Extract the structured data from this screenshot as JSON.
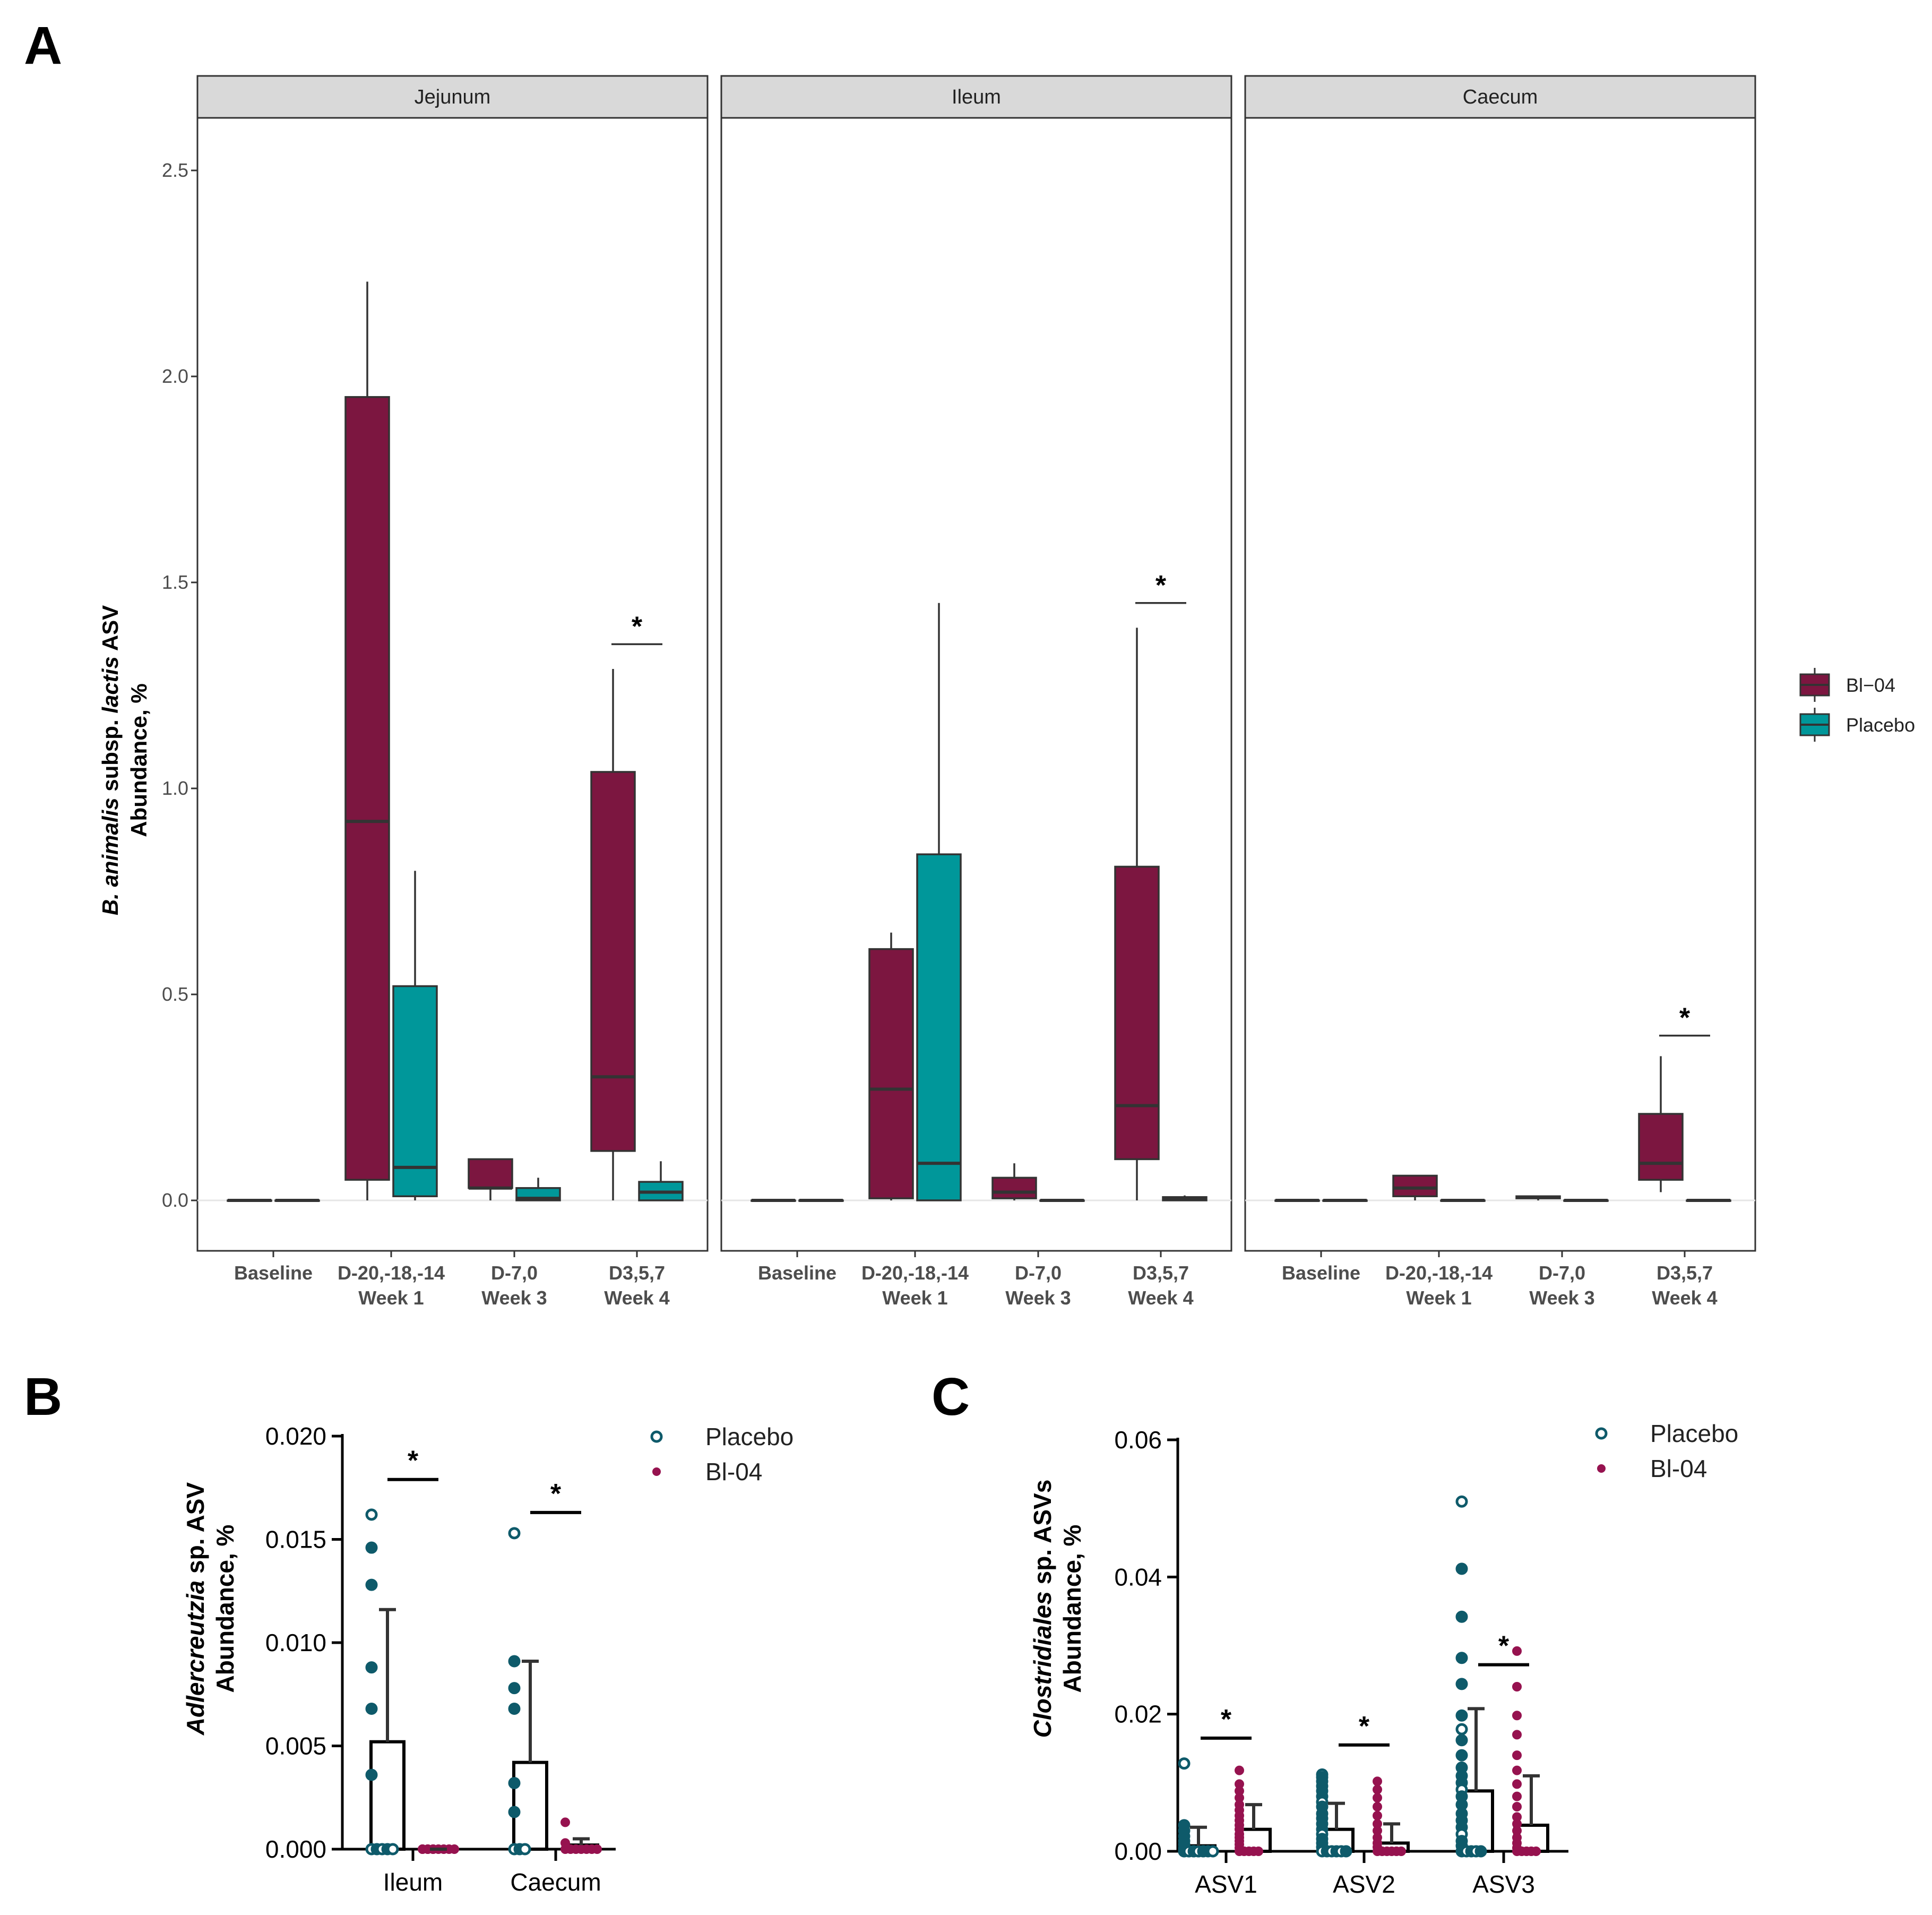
{
  "panel_letters": [
    "A",
    "B",
    "C"
  ],
  "colors": {
    "bl04": "#7c1640",
    "placebo": "#00979a",
    "placebo_dot": "#0e5a6a",
    "bl04_dot": "#96124f",
    "strip_bg": "#d9d9d9"
  },
  "chart_data": [
    {
      "id": "A",
      "type": "box",
      "ylabel_italic": "B. animalis",
      "ylabel_mid": " subsp. ",
      "ylabel_italic2": "lactis",
      "ylabel_tail": " ASV",
      "ylabel_line2": "Abundance, %",
      "ylim": [
        -0.12,
        2.6
      ],
      "yticks": [
        "0.0",
        "0.5",
        "1.0",
        "1.5",
        "2.0",
        "2.5"
      ],
      "categories": [
        "Baseline",
        "D-20,-18,-14|Week 1",
        "D-7,0|Week 3",
        "D3,5,7|Week 4"
      ],
      "legend": [
        "Bl−04",
        "Placebo"
      ],
      "facets": [
        {
          "name": "Jejunum",
          "boxes": [
            {
              "cat": 0,
              "group": "bl04",
              "wlo": 0,
              "q1": 0,
              "med": 0,
              "q3": 0,
              "whi": 0
            },
            {
              "cat": 0,
              "group": "placebo",
              "wlo": 0,
              "q1": 0,
              "med": 0,
              "q3": 0,
              "whi": 0
            },
            {
              "cat": 1,
              "group": "bl04",
              "wlo": 0,
              "q1": 0.05,
              "med": 0.92,
              "q3": 1.95,
              "whi": 2.23
            },
            {
              "cat": 1,
              "group": "placebo",
              "wlo": 0,
              "q1": 0.01,
              "med": 0.08,
              "q3": 0.52,
              "whi": 0.8
            },
            {
              "cat": 2,
              "group": "bl04",
              "wlo": 0,
              "q1": 0.03,
              "med": 0.03,
              "q3": 0.1,
              "whi": 0.1
            },
            {
              "cat": 2,
              "group": "placebo",
              "wlo": 0,
              "q1": 0,
              "med": 0.005,
              "q3": 0.03,
              "whi": 0.055
            },
            {
              "cat": 3,
              "group": "bl04",
              "wlo": 0,
              "q1": 0.12,
              "med": 0.3,
              "q3": 1.04,
              "whi": 1.29
            },
            {
              "cat": 3,
              "group": "placebo",
              "wlo": 0,
              "q1": 0,
              "med": 0.02,
              "q3": 0.045,
              "whi": 0.095
            }
          ],
          "sig": [
            {
              "cat": 3,
              "y": 1.35,
              "label": "*"
            }
          ]
        },
        {
          "name": "Ileum",
          "boxes": [
            {
              "cat": 0,
              "group": "bl04",
              "wlo": 0,
              "q1": 0,
              "med": 0,
              "q3": 0,
              "whi": 0
            },
            {
              "cat": 0,
              "group": "placebo",
              "wlo": 0,
              "q1": 0,
              "med": 0,
              "q3": 0,
              "whi": 0
            },
            {
              "cat": 1,
              "group": "bl04",
              "wlo": 0,
              "q1": 0.005,
              "med": 0.27,
              "q3": 0.61,
              "whi": 0.65
            },
            {
              "cat": 1,
              "group": "placebo",
              "wlo": 0,
              "q1": 0,
              "med": 0.09,
              "q3": 0.84,
              "whi": 1.45
            },
            {
              "cat": 2,
              "group": "bl04",
              "wlo": 0,
              "q1": 0.005,
              "med": 0.02,
              "q3": 0.055,
              "whi": 0.09
            },
            {
              "cat": 2,
              "group": "placebo",
              "wlo": 0,
              "q1": 0,
              "med": 0,
              "q3": 0,
              "whi": 0
            },
            {
              "cat": 3,
              "group": "bl04",
              "wlo": 0,
              "q1": 0.1,
              "med": 0.23,
              "q3": 0.81,
              "whi": 1.39
            },
            {
              "cat": 3,
              "group": "placebo",
              "wlo": 0,
              "q1": 0,
              "med": 0.002,
              "q3": 0.008,
              "whi": 0.012
            }
          ],
          "sig": [
            {
              "cat": 3,
              "y": 1.45,
              "label": "*"
            }
          ]
        },
        {
          "name": "Caecum",
          "boxes": [
            {
              "cat": 0,
              "group": "bl04",
              "wlo": 0,
              "q1": 0,
              "med": 0,
              "q3": 0,
              "whi": 0
            },
            {
              "cat": 0,
              "group": "placebo",
              "wlo": 0,
              "q1": 0,
              "med": 0,
              "q3": 0,
              "whi": 0
            },
            {
              "cat": 1,
              "group": "bl04",
              "wlo": 0,
              "q1": 0.01,
              "med": 0.03,
              "q3": 0.06,
              "whi": 0.06
            },
            {
              "cat": 1,
              "group": "placebo",
              "wlo": 0,
              "q1": 0,
              "med": 0,
              "q3": 0,
              "whi": 0
            },
            {
              "cat": 2,
              "group": "bl04",
              "wlo": 0,
              "q1": 0.005,
              "med": 0.008,
              "q3": 0.01,
              "whi": 0.01
            },
            {
              "cat": 2,
              "group": "placebo",
              "wlo": 0,
              "q1": 0,
              "med": 0,
              "q3": 0,
              "whi": 0
            },
            {
              "cat": 3,
              "group": "bl04",
              "wlo": 0.02,
              "q1": 0.05,
              "med": 0.09,
              "q3": 0.21,
              "whi": 0.35
            },
            {
              "cat": 3,
              "group": "placebo",
              "wlo": 0,
              "q1": 0,
              "med": 0,
              "q3": 0,
              "whi": 0
            }
          ],
          "sig": [
            {
              "cat": 3,
              "y": 0.4,
              "label": "*"
            }
          ]
        }
      ]
    },
    {
      "id": "B",
      "type": "bar_scatter",
      "ylabel_italic": "Adlercreutzia",
      "ylabel_tail": " sp. ASV",
      "ylabel_line2": "Abundance, %",
      "ylim": [
        0,
        0.02
      ],
      "yticks": [
        "0.000",
        "0.005",
        "0.010",
        "0.015",
        "0.020"
      ],
      "categories": [
        "Ileum",
        "Caecum"
      ],
      "legend": [
        "Placebo",
        "Bl-04"
      ],
      "series": [
        {
          "name": "Placebo",
          "means": [
            0.0052,
            0.0042
          ],
          "sd_upper": [
            0.0116,
            0.0091
          ],
          "points": [
            [
              0.0162,
              0.0146,
              0.0128,
              0.0088,
              0.0068,
              0.0036,
              0,
              0,
              0,
              0,
              0
            ],
            [
              0.0153,
              0.0091,
              0.0078,
              0.0068,
              0.0032,
              0.0018,
              0,
              0,
              0
            ]
          ]
        },
        {
          "name": "Bl-04",
          "means": [
            0,
            0.0002
          ],
          "sd_upper": [
            0,
            0.0005
          ],
          "points": [
            [
              0,
              0,
              0,
              0,
              0,
              0,
              0,
              0,
              0,
              0
            ],
            [
              0.0013,
              0.0003,
              0,
              0,
              0,
              0,
              0,
              0,
              0
            ]
          ]
        }
      ],
      "sig": [
        {
          "cat": 0,
          "y": 0.0179,
          "label": "*"
        },
        {
          "cat": 1,
          "y": 0.0163,
          "label": "*"
        }
      ]
    },
    {
      "id": "C",
      "type": "bar_scatter",
      "ylabel_italic": "Clostridiales",
      "ylabel_tail": " sp. ASVs",
      "ylabel_line2": "Abundance, %",
      "ylim": [
        0,
        0.06
      ],
      "yticks": [
        "0.00",
        "0.02",
        "0.04",
        "0.06"
      ],
      "categories": [
        "ASV1",
        "ASV2",
        "ASV3"
      ],
      "legend": [
        "Placebo",
        "Bl-04"
      ],
      "series": [
        {
          "name": "Placebo",
          "means": [
            0.0008,
            0.0032,
            0.0088
          ],
          "sd_upper": [
            0.0035,
            0.007,
            0.0208
          ],
          "points": [
            [
              0.0128,
              0.0038,
              0.003,
              0.0022,
              0.0015,
              0.001,
              0.0005,
              0.0002,
              0,
              0,
              0,
              0,
              0,
              0,
              0,
              0,
              0,
              0,
              0,
              0
            ],
            [
              0.0112,
              0.0108,
              0.0102,
              0.0095,
              0.0088,
              0.008,
              0.0072,
              0.0065,
              0.0055,
              0.0048,
              0.004,
              0.0032,
              0.0025,
              0.0018,
              0.0012,
              0.0006,
              0,
              0,
              0,
              0,
              0,
              0
            ],
            [
              0.051,
              0.0412,
              0.0342,
              0.0282,
              0.0244,
              0.0198,
              0.0178,
              0.0162,
              0.014,
              0.0122,
              0.011,
              0.01,
              0.009,
              0.008,
              0.0068,
              0.0055,
              0.0045,
              0.0035,
              0.0025,
              0.0015,
              0.0008,
              0,
              0,
              0,
              0,
              0
            ]
          ]
        },
        {
          "name": "Bl-04",
          "means": [
            0.0032,
            0.0012,
            0.0038
          ],
          "sd_upper": [
            0.0068,
            0.004,
            0.011
          ],
          "points": [
            [
              0.0118,
              0.0098,
              0.0088,
              0.0078,
              0.0068,
              0.006,
              0.0052,
              0.0045,
              0.0038,
              0.0032,
              0.0025,
              0.002,
              0.0015,
              0.001,
              0.0005,
              0,
              0,
              0,
              0,
              0
            ],
            [
              0.0102,
              0.009,
              0.0078,
              0.0065,
              0.0052,
              0.004,
              0.003,
              0.002,
              0.0012,
              0.0006,
              0,
              0,
              0,
              0,
              0,
              0
            ],
            [
              0.0292,
              0.024,
              0.0198,
              0.017,
              0.014,
              0.0118,
              0.0098,
              0.008,
              0.0065,
              0.005,
              0.004,
              0.003,
              0.002,
              0.0012,
              0.0005,
              0,
              0,
              0,
              0,
              0
            ]
          ]
        }
      ],
      "sig": [
        {
          "cat": 0,
          "y": 0.0165,
          "label": "*"
        },
        {
          "cat": 1,
          "y": 0.0155,
          "label": "*"
        },
        {
          "cat": 2,
          "y": 0.0272,
          "label": "*"
        }
      ]
    }
  ]
}
